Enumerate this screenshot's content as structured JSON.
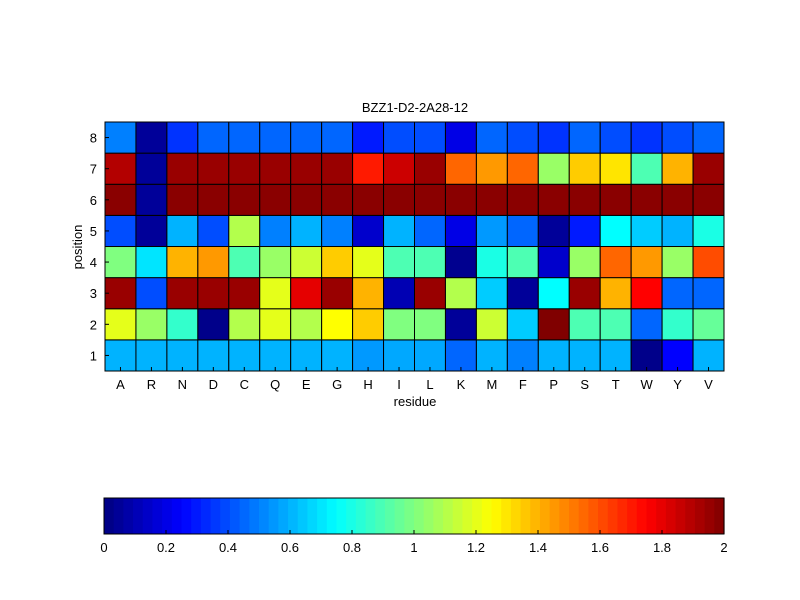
{
  "chart_data": {
    "type": "heatmap",
    "title": "BZZ1-D2-2A28-12",
    "xlabel": "residue",
    "ylabel": "position",
    "x_categories": [
      "A",
      "R",
      "N",
      "D",
      "C",
      "Q",
      "E",
      "G",
      "H",
      "I",
      "L",
      "K",
      "M",
      "F",
      "P",
      "S",
      "T",
      "W",
      "Y",
      "V"
    ],
    "y_categories": [
      "1",
      "2",
      "3",
      "4",
      "5",
      "6",
      "7",
      "8"
    ],
    "values": [
      [
        0.6,
        0.6,
        0.6,
        0.6,
        0.6,
        0.6,
        0.6,
        0.6,
        0.55,
        0.58,
        0.58,
        0.45,
        0.6,
        0.5,
        0.6,
        0.6,
        0.6,
        0.02,
        0.25,
        0.6
      ],
      [
        1.2,
        1.05,
        0.85,
        0.02,
        1.1,
        1.2,
        1.1,
        1.25,
        1.35,
        1.0,
        1.0,
        0.05,
        1.15,
        0.65,
        2.0,
        0.9,
        0.9,
        0.45,
        0.85,
        0.95
      ],
      [
        1.95,
        0.4,
        1.95,
        1.95,
        1.95,
        1.2,
        1.8,
        1.95,
        1.4,
        0.1,
        1.95,
        1.1,
        0.65,
        0.05,
        0.75,
        1.95,
        1.4,
        1.75,
        0.45,
        0.45
      ],
      [
        1.0,
        0.7,
        1.4,
        1.45,
        0.9,
        1.05,
        1.15,
        1.35,
        1.2,
        0.9,
        0.9,
        0.03,
        0.8,
        0.9,
        0.15,
        1.05,
        1.55,
        1.45,
        1.05,
        1.6
      ],
      [
        0.4,
        0.05,
        0.6,
        0.4,
        1.1,
        0.5,
        0.6,
        0.5,
        0.15,
        0.6,
        0.45,
        0.2,
        0.55,
        0.45,
        0.05,
        0.3,
        0.75,
        0.65,
        0.6,
        0.8
      ],
      [
        1.98,
        0.05,
        1.98,
        1.98,
        1.98,
        1.98,
        1.98,
        1.98,
        1.98,
        1.98,
        1.98,
        1.98,
        1.98,
        1.98,
        1.98,
        1.98,
        1.98,
        1.98,
        1.98,
        1.98
      ],
      [
        1.9,
        0.05,
        1.95,
        1.95,
        1.95,
        1.95,
        1.95,
        1.95,
        1.7,
        1.85,
        1.95,
        1.55,
        1.45,
        1.55,
        1.05,
        1.35,
        1.3,
        0.9,
        1.4,
        1.95
      ],
      [
        0.5,
        0.05,
        0.35,
        0.45,
        0.45,
        0.45,
        0.45,
        0.45,
        0.3,
        0.4,
        0.4,
        0.2,
        0.45,
        0.4,
        0.35,
        0.45,
        0.4,
        0.35,
        0.4,
        0.45
      ]
    ],
    "colormap": "jet",
    "clim": [
      0,
      2
    ],
    "colorbar_ticks": [
      "0",
      "0.2",
      "0.4",
      "0.6",
      "0.8",
      "1",
      "1.2",
      "1.4",
      "1.6",
      "1.8",
      "2"
    ],
    "colorbar_position": "bottom",
    "grid": false
  }
}
